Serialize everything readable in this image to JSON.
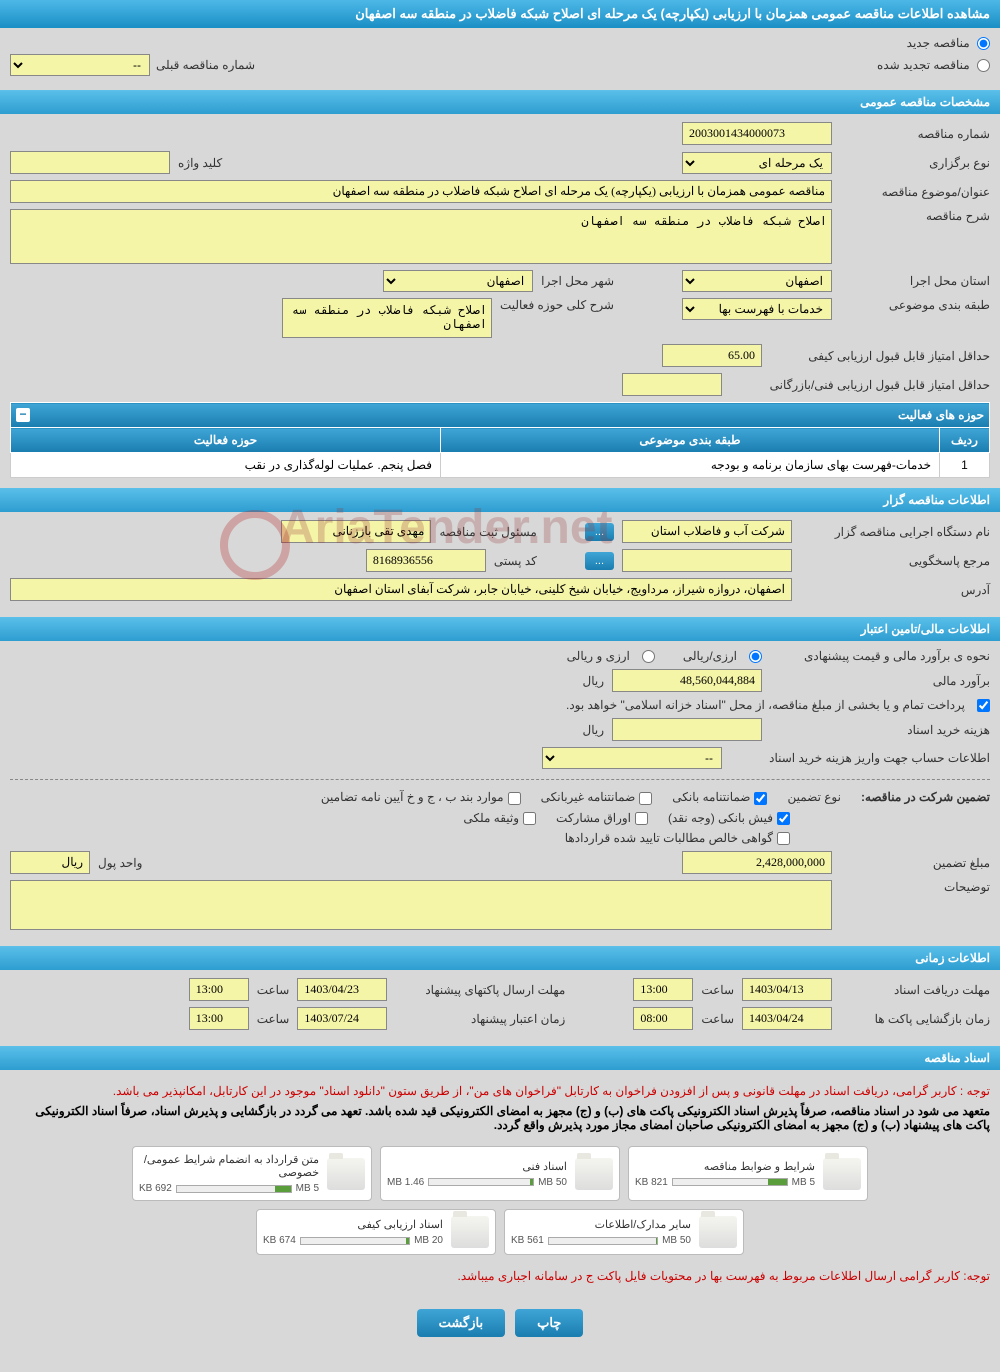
{
  "header": {
    "title": "مشاهده اطلاعات مناقصه عمومی همزمان با ارزیابی (یکپارچه) یک مرحله ای اصلاح شبکه فاضلاب در منطقه سه اصفهان"
  },
  "top": {
    "radio_new": "مناقصه جدید",
    "radio_renewed": "مناقصه تجدید شده",
    "prev_number_label": "شماره مناقصه قبلی",
    "prev_number_placeholder": "--"
  },
  "general": {
    "section_title": "مشخصات مناقصه عمومی",
    "tender_no_label": "شماره مناقصه",
    "tender_no": "2003001434000073",
    "type_label": "نوع برگزاری",
    "type_value": "یک مرحله ای",
    "keyword_label": "کلید واژه",
    "keyword_value": "",
    "subject_label": "عنوان/موضوع مناقصه",
    "subject_value": "مناقصه عمومی همزمان با ارزیابی (یکپارچه) یک مرحله ای اصلاح شبکه فاضلاب در منطقه سه اصفهان",
    "desc_label": "شرح مناقصه",
    "desc_value": "اصلاح شبکه فاضلاب در منطقه سه اصفهان",
    "province_label": "استان محل اجرا",
    "province_value": "اصفهان",
    "city_label": "شهر محل اجرا",
    "city_value": "اصفهان",
    "category_label": "طبقه بندی موضوعی",
    "category_value": "خدمات با فهرست بها",
    "activity_summary_label": "شرح کلی حوزه فعالیت",
    "activity_summary_value": "اصلاح شبکه فاضلاب در منطقه سه اصفهان",
    "min_quality_label": "حداقل امتیاز قابل قبول ارزیابی کیفی",
    "min_quality_value": "65.00",
    "min_tech_label": "حداقل امتیاز قابل قبول ارزیابی فنی/بازرگانی",
    "min_tech_value": "",
    "activity_table": {
      "title": "حوزه های فعالیت",
      "col_row": "ردیف",
      "col_category": "طبقه بندی موضوعی",
      "col_area": "حوزه فعالیت",
      "rows": [
        {
          "num": "1",
          "cat": "خدمات-فهرست بهای سازمان برنامه و بودجه",
          "area": "فصل پنجم. عملیات لوله‌گذاری در نقب"
        }
      ]
    }
  },
  "organizer": {
    "section_title": "اطلاعات مناقصه گزار",
    "org_label": "نام دستگاه اجرایی مناقصه گزار",
    "org_value": "شرکت آب و فاضلاب استان",
    "responsible_label": "مسئول ثبت مناقصه",
    "responsible_value": "مهدی تقی باززنانی",
    "contact_label": "مرجع پاسخگویی",
    "contact_value": "",
    "btn_more": "...",
    "postal_label": "کد پستی",
    "postal_value": "8168936556",
    "address_label": "آدرس",
    "address_value": "اصفهان، دروازه شیراز، مرداویج، خیابان شیخ کلینی، خیابان جابر، شرکت آبفای استان اصفهان"
  },
  "financial": {
    "section_title": "اطلاعات مالی/تامین اعتبار",
    "estimate_method_label": "نحوه ی برآورد مالی و قیمت پیشنهادی",
    "opt_rial": "ارزی/ریالی",
    "opt_currency": "ارزی و ریالی",
    "estimate_label": "برآورد مالی",
    "estimate_value": "48,560,044,884",
    "currency_unit": "ریال",
    "treasury_note": "پرداخت تمام و یا بخشی از مبلغ مناقصه، از محل \"اسناد خزانه اسلامی\" خواهد بود.",
    "doc_cost_label": "هزینه خرید اسناد",
    "doc_cost_value": "",
    "account_label": "اطلاعات حساب جهت واریز هزینه خرید اسناد",
    "account_placeholder": "--",
    "guarantee_label": "تضمین شرکت در مناقصه:",
    "guarantee_type_label": "نوع تضمین",
    "g1": "ضمانتنامه بانکی",
    "g2": "ضمانتنامه غیربانکی",
    "g3": "موارد بند ب ، ج و خ آیین نامه تضامین",
    "g4": "فیش بانکی (وجه نقد)",
    "g5": "اوراق مشارکت",
    "g6": "وثیقه ملکی",
    "g7": "گواهی خالص مطالبات تایید شده قراردادها",
    "guarantee_amount_label": "مبلغ تضمین",
    "guarantee_amount_value": "2,428,000,000",
    "money_unit_label": "واحد پول",
    "money_unit_value": "ریال",
    "notes_label": "توضیحات",
    "notes_value": ""
  },
  "timing": {
    "section_title": "اطلاعات زمانی",
    "receive_deadline_label": "مهلت دریافت اسناد",
    "receive_deadline_date": "1403/04/13",
    "receive_deadline_time": "13:00",
    "send_deadline_label": "مهلت ارسال پاکتهای پیشنهاد",
    "send_deadline_date": "1403/04/23",
    "send_deadline_time": "13:00",
    "opening_label": "زمان بازگشایی پاکت ها",
    "opening_date": "1403/04/24",
    "opening_time": "08:00",
    "validity_label": "زمان اعتبار پیشنهاد",
    "validity_date": "1403/07/24",
    "validity_time": "13:00",
    "time_label": "ساعت"
  },
  "documents": {
    "section_title": "اسناد مناقصه",
    "notice1": "توجه : کاربر گرامی، دریافت اسناد در مهلت قانونی و پس از افزودن فراخوان به کارتابل \"فراخوان های من\"، از طریق ستون \"دانلود اسناد\" موجود در این کارتابل، امکانپذیر می باشد.",
    "notice2": "متعهد می شود در اسناد مناقصه، صرفاً پذیرش اسناد الکترونیکی پاکت های (ب) و (ج) مجهز به امضای الکترونیکی قید شده باشد. تعهد می گردد در بازگشایی و پذیرش اسناد، صرفاً اسناد الکترونیکی پاکت های پیشنهاد (ب) و (ج) مجهز به امضای الکترونیکی صاحبان امضای مجاز مورد پذیرش واقع گردد.",
    "notice3": "توجه: کاربر گرامی ارسال اطلاعات مربوط به فهرست بها در محتویات فایل پاکت ج در سامانه اجباری میباشد.",
    "cards": [
      {
        "title": "شرایط و ضوابط مناقصه",
        "size": "821 KB",
        "max": "5 MB",
        "pct": 16
      },
      {
        "title": "اسناد فنی",
        "size": "1.46 MB",
        "max": "50 MB",
        "pct": 3
      },
      {
        "title": "متن قرارداد به انضمام شرایط عمومی/خصوصی",
        "size": "692 KB",
        "max": "5 MB",
        "pct": 14
      },
      {
        "title": "سایر مدارک/اطلاعات",
        "size": "561 KB",
        "max": "50 MB",
        "pct": 1
      },
      {
        "title": "اسناد ارزیابی کیفی",
        "size": "674 KB",
        "max": "20 MB",
        "pct": 3
      }
    ]
  },
  "footer": {
    "btn_print": "چاپ",
    "btn_back": "بازگشت"
  },
  "watermark": "AriaTender.net",
  "colors": {
    "header_bg": "#2d9dd0",
    "input_bg": "#f5f5a8",
    "page_bg": "#d8d8d8"
  }
}
